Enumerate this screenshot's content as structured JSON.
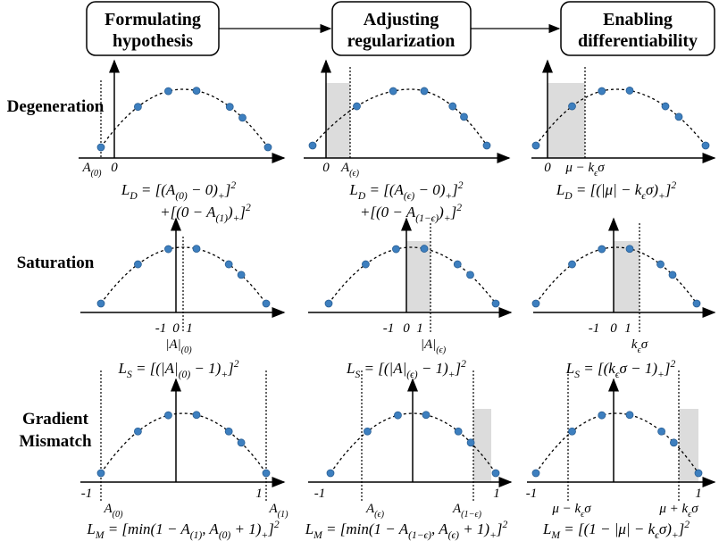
{
  "headers": [
    [
      "Formulating",
      "hypothesis"
    ],
    [
      "Adjusting",
      "regularization"
    ],
    [
      "Enabling",
      "differentiability"
    ]
  ],
  "rows": [
    {
      "label": [
        "Degeneration"
      ],
      "panels": [
        {
          "axis_labels": [
            [
              "A",
              {
                "sub": "(0)"
              }
            ],
            [
              "0"
            ]
          ],
          "formula": [
            [
              "L",
              {
                "sub": "D"
              },
              " = [(A",
              {
                "sub": "(0)"
              },
              " − 0)",
              {
                "sub": "+"
              },
              "]",
              {
                "sup": "2"
              }
            ],
            [
              "+[(0 − A",
              {
                "sub": "(1)"
              },
              ")",
              {
                "sub": "+"
              },
              "]",
              {
                "sup": "2"
              }
            ]
          ]
        },
        {
          "axis_labels": [
            [
              "0"
            ],
            [
              "A",
              {
                "sub": "(ϵ)"
              }
            ]
          ],
          "formula": [
            [
              "L",
              {
                "sub": "D"
              },
              " = [(A",
              {
                "sub": "(ϵ)"
              },
              " − 0)",
              {
                "sub": "+"
              },
              "]",
              {
                "sup": "2"
              }
            ],
            [
              "+[(0 − A",
              {
                "sub": "(1−ϵ)"
              },
              ")",
              {
                "sub": "+"
              },
              "]",
              {
                "sup": "2"
              }
            ]
          ]
        },
        {
          "axis_labels": [
            [
              "0"
            ],
            [
              "μ − k",
              {
                "sub": "ϵ"
              },
              "σ"
            ]
          ],
          "formula": [
            [
              "L",
              {
                "sub": "D"
              },
              " = [(|μ| − k",
              {
                "sub": "ϵ"
              },
              "σ)",
              {
                "sub": "+"
              },
              "]",
              {
                "sup": "2"
              }
            ]
          ]
        }
      ]
    },
    {
      "label": [
        "Saturation"
      ],
      "panels": [
        {
          "axis_labels": [
            [
              "-1"
            ],
            [
              "0"
            ],
            [
              "1"
            ],
            [
              "|A|",
              {
                "sub": "(0)"
              }
            ]
          ],
          "formula": [
            [
              "L",
              {
                "sub": "S"
              },
              " = [(|A|",
              {
                "sub": "(0)"
              },
              " − 1)",
              {
                "sub": "+"
              },
              "]",
              {
                "sup": "2"
              }
            ]
          ]
        },
        {
          "axis_labels": [
            [
              "-1"
            ],
            [
              "0"
            ],
            [
              "1"
            ],
            [
              "|A|",
              {
                "sub": "(ϵ)"
              }
            ]
          ],
          "formula": [
            [
              "L",
              {
                "sub": "S"
              },
              " = [(|A|",
              {
                "sub": "(ϵ)"
              },
              " − 1)",
              {
                "sub": "+"
              },
              "]",
              {
                "sup": "2"
              }
            ]
          ]
        },
        {
          "axis_labels": [
            [
              "-1"
            ],
            [
              "0"
            ],
            [
              "1"
            ],
            [
              "k",
              {
                "sub": "ϵ"
              },
              "σ"
            ]
          ],
          "formula": [
            [
              "L",
              {
                "sub": "S"
              },
              " = [(k",
              {
                "sub": "ϵ"
              },
              "σ − 1)",
              {
                "sub": "+"
              },
              "]",
              {
                "sup": "2"
              }
            ]
          ]
        }
      ]
    },
    {
      "label": [
        "Gradient",
        "Mismatch"
      ],
      "panels": [
        {
          "axis_labels": [
            [
              "-1"
            ],
            [
              "1"
            ],
            [
              "A",
              {
                "sub": "(0)"
              }
            ],
            [
              "A",
              {
                "sub": "(1)"
              }
            ]
          ],
          "formula": [
            [
              "L",
              {
                "sub": "M"
              },
              " = [min(1 − A",
              {
                "sub": "(1)"
              },
              ", A",
              {
                "sub": "(0)"
              },
              " + 1)",
              {
                "sub": "+"
              },
              "]",
              {
                "sup": "2"
              }
            ]
          ]
        },
        {
          "axis_labels": [
            [
              "-1"
            ],
            [
              "1"
            ],
            [
              "A",
              {
                "sub": "(ϵ)"
              }
            ],
            [
              "A",
              {
                "sub": "(1−ϵ)"
              }
            ]
          ],
          "formula": [
            [
              "L",
              {
                "sub": "M"
              },
              " = [min(1 − A",
              {
                "sub": "(1−ϵ)"
              },
              ", A",
              {
                "sub": "(ϵ)"
              },
              " + 1)",
              {
                "sub": "+"
              },
              "]",
              {
                "sup": "2"
              }
            ]
          ]
        },
        {
          "axis_labels": [
            [
              "-1"
            ],
            [
              "1"
            ],
            [
              "μ − k",
              {
                "sub": "ϵ"
              },
              "σ"
            ],
            [
              "μ + k",
              {
                "sub": "ϵ"
              },
              "σ"
            ]
          ],
          "formula": [
            [
              "L",
              {
                "sub": "M"
              },
              " = [(1 − |μ| − k",
              {
                "sub": "ϵ"
              },
              "σ)",
              {
                "sub": "+"
              },
              "]",
              {
                "sup": "2"
              }
            ]
          ]
        }
      ]
    }
  ]
}
